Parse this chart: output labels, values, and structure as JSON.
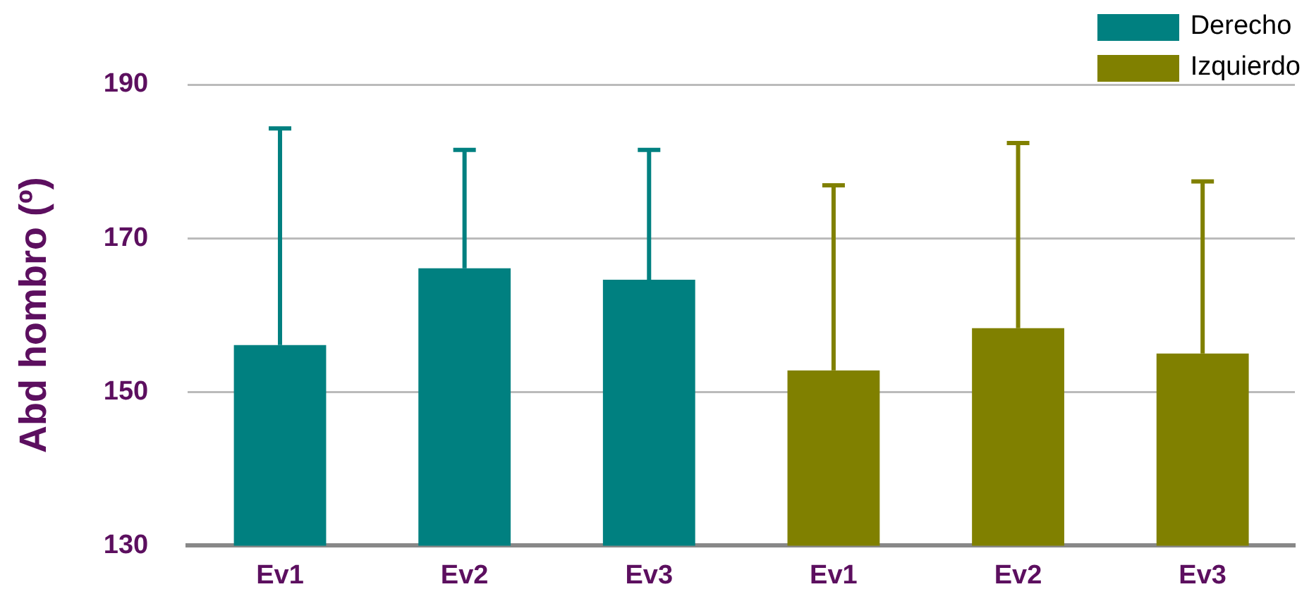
{
  "chart_data": {
    "type": "bar",
    "ylabel": "Abd hombro (º)",
    "categories": [
      "Ev1",
      "Ev2",
      "Ev3",
      "Ev1",
      "Ev2",
      "Ev3"
    ],
    "series": [
      {
        "name": "Derecho",
        "color": "#008080",
        "values": [
          156.1,
          166.1,
          164.6,
          null,
          null,
          null
        ],
        "errors": [
          [
            156.1,
            184.3
          ],
          [
            166.1,
            181.5
          ],
          [
            164.6,
            181.5
          ],
          null,
          null,
          null
        ]
      },
      {
        "name": "Izquierdo",
        "color": "#808000",
        "values": [
          null,
          null,
          null,
          152.8,
          158.3,
          155
        ],
        "errors": [
          null,
          null,
          null,
          [
            152.8,
            176.9
          ],
          [
            158.3,
            182.4
          ],
          [
            155,
            177.4
          ]
        ]
      }
    ],
    "ylim": [
      130,
      190
    ],
    "yticks": [
      130,
      150,
      170,
      190
    ],
    "grid": "y",
    "legend": "top right"
  }
}
